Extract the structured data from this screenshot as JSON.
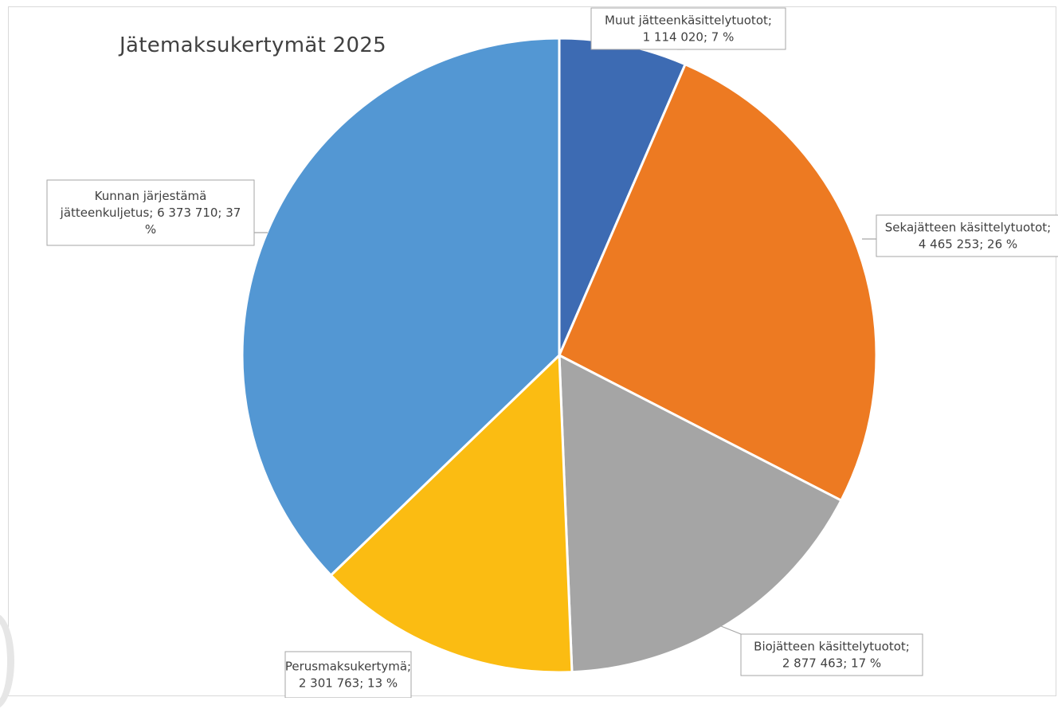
{
  "chart_data": {
    "type": "pie",
    "title": "Jätemaksukertymät 2025",
    "slices": [
      {
        "label": "Muut jätteenkäsittelytuotot",
        "value": 1114020,
        "percent": 7,
        "color": "#3d6bb3",
        "callout_lines": [
          "Muut jätteenkäsittelytuotot;",
          "1 114 020; 7 %"
        ]
      },
      {
        "label": "Sekajätteen käsittelytuotot",
        "value": 4465253,
        "percent": 26,
        "color": "#ed7a22",
        "callout_lines": [
          "Sekajätteen käsittelytuotot;",
          "4 465 253; 26 %"
        ]
      },
      {
        "label": "Biojätteen käsittelytuotot",
        "value": 2877463,
        "percent": 17,
        "color": "#a5a5a5",
        "callout_lines": [
          "Biojätteen käsittelytuotot;",
          "2 877 463; 17 %"
        ]
      },
      {
        "label": "Perusmaksukertymä",
        "value": 2301763,
        "percent": 13,
        "color": "#fbbc12",
        "callout_lines": [
          "Perusmaksukertymä;",
          "2 301 763; 13 %"
        ]
      },
      {
        "label": "Kunnan järjestämä jätteenkuljetus",
        "value": 6373710,
        "percent": 37,
        "color": "#5397d3",
        "callout_lines": [
          "Kunnan järjestämä",
          "jätteenkuljetus; 6 373 710; 37",
          "%"
        ]
      }
    ]
  }
}
